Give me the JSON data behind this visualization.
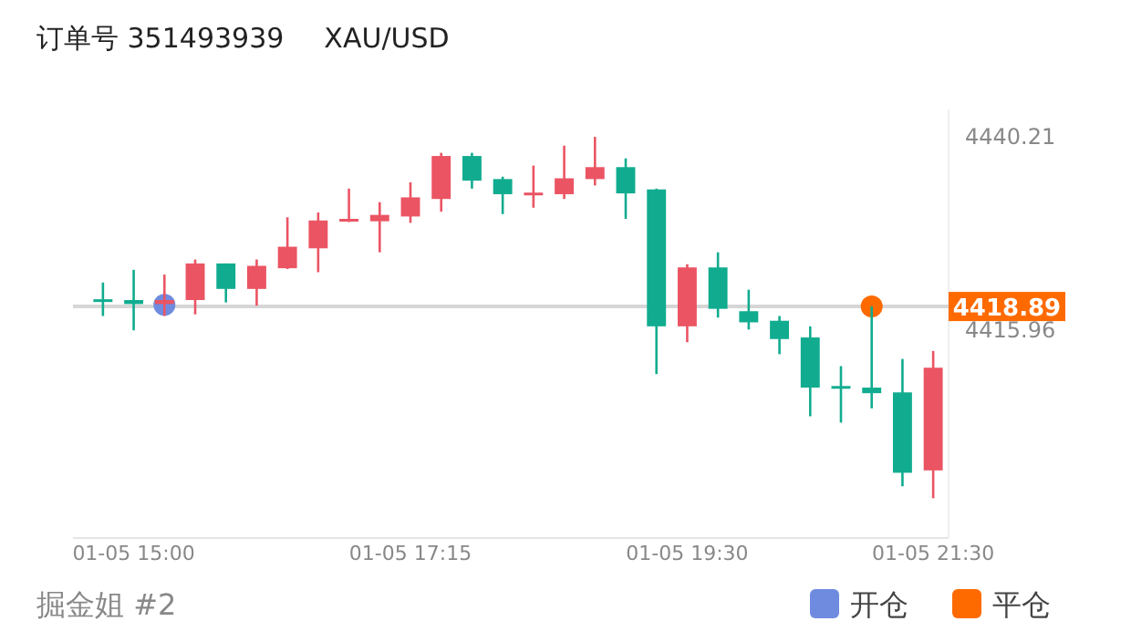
{
  "chart_data": {
    "type": "candlestick",
    "title": "订单号 351493939",
    "subtitle": "XAU/USD",
    "categories": [
      null,
      "01-05 15:00",
      null,
      null,
      null,
      null,
      null,
      null,
      null,
      null,
      "01-05 17:15",
      null,
      null,
      null,
      null,
      null,
      null,
      null,
      null,
      "01-05 19:30",
      null,
      null,
      null,
      null,
      null,
      null,
      null,
      "01-05 21:30"
    ],
    "ohlc": [
      [
        4419.8,
        4421.9,
        4417.7,
        4419.7
      ],
      [
        4419.7,
        4423.5,
        4415.9,
        4419.2
      ],
      [
        4419.2,
        4422.9,
        4417.7,
        4419.7
      ],
      [
        4419.7,
        4424.8,
        4417.9,
        4424.3
      ],
      [
        4424.3,
        4424.3,
        4419.4,
        4421.1
      ],
      [
        4421.1,
        4424.8,
        4419.0,
        4424.0
      ],
      [
        4423.7,
        4430.1,
        4423.6,
        4426.4
      ],
      [
        4426.2,
        4430.7,
        4423.2,
        4429.7
      ],
      [
        4429.6,
        4433.7,
        4429.5,
        4429.9
      ],
      [
        4429.6,
        4432.0,
        4425.7,
        4430.4
      ],
      [
        4430.2,
        4434.5,
        4429.4,
        4432.6
      ],
      [
        4432.4,
        4438.2,
        4430.8,
        4437.8
      ],
      [
        4437.8,
        4438.2,
        4433.7,
        4434.7
      ],
      [
        4434.9,
        4435.2,
        4430.5,
        4433.0
      ],
      [
        4433.1,
        4436.6,
        4431.3,
        4433.2
      ],
      [
        4433.0,
        4439.1,
        4432.4,
        4435.0
      ],
      [
        4434.9,
        4440.2,
        4434.1,
        4436.4
      ],
      [
        4436.4,
        4437.5,
        4429.9,
        4433.1
      ],
      [
        4433.6,
        4433.7,
        4410.4,
        4416.4
      ],
      [
        4416.4,
        4424.2,
        4414.4,
        4423.8
      ],
      [
        4423.8,
        4425.7,
        4417.5,
        4418.6
      ],
      [
        4418.3,
        4421.0,
        4416.0,
        4416.9
      ],
      [
        4417.1,
        4417.7,
        4412.9,
        4414.8
      ],
      [
        4415.0,
        4416.4,
        4405.1,
        4408.7
      ],
      [
        4408.9,
        4411.4,
        4404.3,
        4408.7
      ],
      [
        4408.7,
        4418.9,
        4406.1,
        4408.0
      ],
      [
        4408.1,
        4412.3,
        4396.3,
        4398.0
      ],
      [
        4398.3,
        4413.3,
        4394.8,
        4411.2
      ]
    ],
    "colors": [
      "#11ac8f",
      "#11ac8f",
      "#eb5463",
      "#eb5463",
      "#11ac8f",
      "#eb5463",
      "#eb5463",
      "#eb5463",
      "#eb5463",
      "#eb5463",
      "#eb5463",
      "#eb5463",
      "#11ac8f",
      "#11ac8f",
      "#eb5463",
      "#eb5463",
      "#eb5463",
      "#11ac8f",
      "#11ac8f",
      "#eb5463",
      "#11ac8f",
      "#11ac8f",
      "#11ac8f",
      "#11ac8f",
      "#11ac8f",
      "#11ac8f",
      "#11ac8f",
      "#eb5463"
    ],
    "series": [
      {
        "name": "开仓",
        "type": "scatter",
        "color": "#6f8be0",
        "values": [
          null,
          null,
          4419.1,
          null,
          null,
          null,
          null,
          null,
          null,
          null,
          null,
          null,
          null,
          null,
          null,
          null,
          null,
          null,
          null,
          null,
          null,
          null,
          null,
          null,
          null,
          null,
          null,
          null
        ]
      },
      {
        "name": "平仓",
        "type": "scatter",
        "color": "#ff6a00",
        "values": [
          null,
          null,
          null,
          null,
          null,
          null,
          null,
          null,
          null,
          null,
          null,
          null,
          null,
          null,
          null,
          null,
          null,
          null,
          null,
          null,
          null,
          null,
          null,
          null,
          null,
          4418.9,
          null,
          null
        ]
      }
    ],
    "marker": "circle",
    "ylim": [
      4389.8,
      4443.65
    ],
    "yticks": [
      4440.21,
      4415.96
    ],
    "ref_lines": [
      {
        "axis": "y",
        "value": 4418.89,
        "label": "4418.89",
        "color": "#d6d6d6"
      }
    ],
    "legend": "bottom right",
    "annotations": [
      "掘金姐 #2"
    ]
  }
}
